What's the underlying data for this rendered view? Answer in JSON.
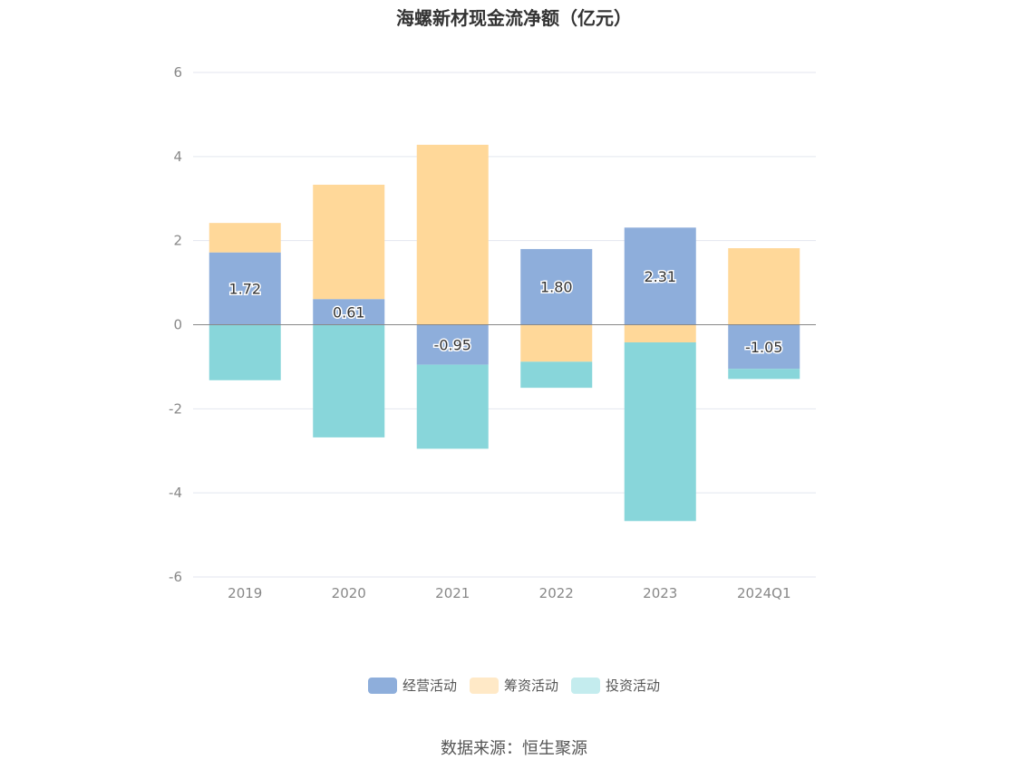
{
  "chart_data": {
    "type": "bar",
    "stacked": true,
    "title": "海螺新材现金流净额（亿元）",
    "categories": [
      "2019",
      "2020",
      "2021",
      "2022",
      "2023",
      "2024Q1"
    ],
    "series": [
      {
        "name": "经营活动",
        "color": "#8eaedb",
        "values": [
          1.72,
          0.61,
          -0.95,
          1.8,
          2.31,
          -1.05
        ]
      },
      {
        "name": "筹资活动",
        "color": "#ffd899",
        "values": [
          0.7,
          2.72,
          4.28,
          -0.88,
          -0.42,
          1.82
        ]
      },
      {
        "name": "投资活动",
        "color": "#88d6da",
        "values": [
          -1.32,
          -2.68,
          -2.0,
          -0.62,
          -4.25,
          -0.24
        ]
      }
    ],
    "data_labels_series": "经营活动",
    "ylim": [
      -6,
      6
    ],
    "yticks": [
      6,
      4,
      2,
      0,
      -2,
      -4,
      -6
    ],
    "grid": true,
    "legend_position": "bottom"
  },
  "legend": [
    {
      "label": "经营活动",
      "color": "#8eaedb"
    },
    {
      "label": "筹资活动",
      "color": "#ffe9c7"
    },
    {
      "label": "投资活动",
      "color": "#c4ecee"
    }
  ],
  "source": "数据来源：恒生聚源"
}
